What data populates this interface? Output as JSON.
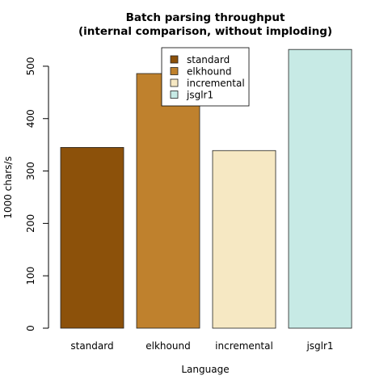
{
  "chart_data": {
    "type": "bar",
    "title": [
      "Batch parsing throughput",
      "(internal comparison, without imploding)"
    ],
    "xlabel": "Language",
    "ylabel": "1000 chars/s",
    "categories": [
      "standard",
      "elkhound",
      "incremental",
      "jsglr1"
    ],
    "values": [
      345,
      486,
      339,
      532
    ],
    "colors": [
      "#8c510a",
      "#bf812d",
      "#f6e8c3",
      "#c7eae5"
    ],
    "ylim": [
      0,
      540
    ],
    "yticks": [
      0,
      100,
      200,
      300,
      400,
      500
    ],
    "grid": false,
    "legend": {
      "placement": "top-center",
      "entries": [
        "standard",
        "elkhound",
        "incremental",
        "jsglr1"
      ]
    }
  }
}
